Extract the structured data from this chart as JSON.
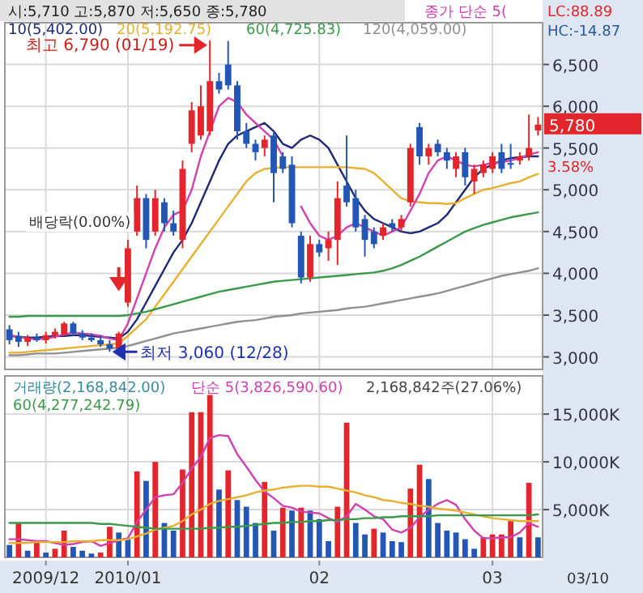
{
  "chart_data": [
    {
      "type": "candlestick",
      "title": "시:5,710 고:5,870 저:5,650 종:5,780",
      "categories": [
        null,
        null,
        null,
        null,
        "2009/12",
        null,
        null,
        null,
        null,
        null,
        null,
        null,
        null,
        "2010/01",
        null,
        null,
        null,
        null,
        null,
        null,
        null,
        null,
        null,
        null,
        null,
        null,
        null,
        null,
        null,
        null,
        null,
        null,
        null,
        null,
        "02",
        null,
        null,
        null,
        null,
        null,
        null,
        null,
        null,
        null,
        null,
        null,
        null,
        null,
        null,
        null,
        null,
        null,
        null,
        "03",
        null,
        null,
        null,
        null,
        null
      ],
      "ohlc": [
        [
          3330,
          3380,
          3150,
          3200
        ],
        [
          3250,
          3300,
          3120,
          3180
        ],
        [
          3180,
          3260,
          3130,
          3230
        ],
        [
          3230,
          3280,
          3180,
          3200
        ],
        [
          3200,
          3300,
          3160,
          3260
        ],
        [
          3260,
          3340,
          3220,
          3300
        ],
        [
          3270,
          3420,
          3250,
          3400
        ],
        [
          3400,
          3420,
          3250,
          3280
        ],
        [
          3280,
          3320,
          3200,
          3230
        ],
        [
          3230,
          3280,
          3180,
          3200
        ],
        [
          3200,
          3260,
          3120,
          3150
        ],
        [
          3150,
          3200,
          3060,
          3100
        ],
        [
          3100,
          3300,
          3080,
          3280
        ],
        [
          3650,
          4400,
          3600,
          4300
        ],
        [
          4500,
          5050,
          4450,
          4900
        ],
        [
          4900,
          4950,
          4300,
          4400
        ],
        [
          4500,
          5000,
          4450,
          4900
        ],
        [
          4850,
          4900,
          4500,
          4600
        ],
        [
          4600,
          4750,
          4450,
          4500
        ],
        [
          4400,
          5350,
          4300,
          5250
        ],
        [
          5550,
          6050,
          5450,
          5950
        ],
        [
          5650,
          6250,
          5600,
          6000
        ],
        [
          5700,
          6790,
          5650,
          6300
        ],
        [
          6300,
          6400,
          6150,
          6200
        ],
        [
          6500,
          6780,
          6200,
          6250
        ],
        [
          6250,
          6300,
          5600,
          5700
        ],
        [
          5700,
          5800,
          5500,
          5550
        ],
        [
          5550,
          5600,
          5350,
          5450
        ],
        [
          5500,
          5650,
          5400,
          5600
        ],
        [
          5650,
          5700,
          4850,
          5200
        ],
        [
          5400,
          5450,
          5200,
          5250
        ],
        [
          5300,
          5400,
          4550,
          4600
        ],
        [
          4450,
          4500,
          3880,
          3950
        ],
        [
          3950,
          4450,
          3900,
          4350
        ],
        [
          4350,
          4400,
          4200,
          4250
        ],
        [
          4300,
          4500,
          4150,
          4400
        ],
        [
          4400,
          5100,
          4100,
          4900
        ],
        [
          5050,
          5650,
          4800,
          4850
        ],
        [
          4900,
          5000,
          4500,
          4550
        ],
        [
          4650,
          4700,
          4200,
          4400
        ],
        [
          4500,
          4550,
          4300,
          4350
        ],
        [
          4450,
          4600,
          4400,
          4550
        ],
        [
          4600,
          4650,
          4500,
          4550
        ],
        [
          4550,
          4700,
          4500,
          4650
        ],
        [
          4850,
          5550,
          4800,
          5500
        ],
        [
          5750,
          5800,
          5300,
          5400
        ],
        [
          5400,
          5550,
          5300,
          5500
        ],
        [
          5550,
          5600,
          5400,
          5450
        ],
        [
          5450,
          5500,
          5250,
          5350
        ],
        [
          5250,
          5450,
          5150,
          5400
        ],
        [
          5450,
          5500,
          5050,
          5150
        ],
        [
          5100,
          5300,
          4950,
          5250
        ],
        [
          5200,
          5350,
          5150,
          5300
        ],
        [
          5250,
          5450,
          5200,
          5400
        ],
        [
          5450,
          5550,
          5200,
          5250
        ],
        [
          5320,
          5550,
          5250,
          5300
        ],
        [
          5350,
          5450,
          5300,
          5400
        ],
        [
          5400,
          5900,
          5350,
          5500
        ],
        [
          5710,
          5870,
          5650,
          5780
        ]
      ],
      "colors": [
        "#2457b5",
        "#2457b5",
        "#e3262b",
        "#2457b5",
        "#e3262b",
        "#e3262b",
        "#e3262b",
        "#2457b5",
        "#2457b5",
        "#2457b5",
        "#2457b5",
        "#2457b5",
        "#e3262b",
        "#e3262b",
        "#e3262b",
        "#2457b5",
        "#e3262b",
        "#2457b5",
        "#2457b5",
        "#e3262b",
        "#e3262b",
        "#e3262b",
        "#e3262b",
        "#2457b5",
        "#2457b5",
        "#2457b5",
        "#2457b5",
        "#2457b5",
        "#e3262b",
        "#2457b5",
        "#2457b5",
        "#2457b5",
        "#2457b5",
        "#e3262b",
        "#2457b5",
        "#e3262b",
        "#e3262b",
        "#2457b5",
        "#2457b5",
        "#2457b5",
        "#2457b5",
        "#e3262b",
        "#2457b5",
        "#e3262b",
        "#e3262b",
        "#2457b5",
        "#e3262b",
        "#2457b5",
        "#2457b5",
        "#e3262b",
        "#2457b5",
        "#e3262b",
        "#e3262b",
        "#e3262b",
        "#2457b5",
        "#2457b5",
        "#e3262b",
        "#e3262b",
        "#e3262b"
      ],
      "ylim": [
        2850,
        7000
      ],
      "yticks": [
        {
          "value": 3000,
          "label": "3,000"
        },
        {
          "value": 3500,
          "label": "3,500"
        },
        {
          "value": 4000,
          "label": "4,000"
        },
        {
          "value": 4500,
          "label": "4,500"
        },
        {
          "value": 5000,
          "label": "5,000"
        },
        {
          "value": 5500,
          "label": "5,500"
        },
        {
          "value": 6000,
          "label": "6,000"
        },
        {
          "value": 6500,
          "label": "6,500"
        }
      ],
      "grid": true,
      "tick_labels": "y",
      "legend": "top left",
      "series": [
        {
          "type": "line",
          "name": "10(5,402.00)",
          "color": "#1c2a78",
          "values": [
            3250,
            3240,
            3230,
            3230,
            3240,
            3250,
            3250,
            3260,
            3260,
            3250,
            3240,
            3230,
            3220,
            3300,
            3450,
            3650,
            3850,
            4050,
            4250,
            4400,
            4600,
            4850,
            5100,
            5350,
            5550,
            5650,
            5700,
            5750,
            5800,
            5700,
            5550,
            5500,
            5600,
            5650,
            5600,
            5500,
            5300,
            5100,
            4900,
            4750,
            4650,
            4600,
            4550,
            4500,
            4480,
            4500,
            4550,
            4600,
            4700,
            4850,
            5000,
            5150,
            5250,
            5300,
            5350,
            5380,
            5390,
            5400,
            5400
          ]
        },
        {
          "type": "line",
          "name": "20(5,192.75)",
          "color": "#e8b030",
          "values": [
            3050,
            3050,
            3060,
            3070,
            3080,
            3090,
            3100,
            3110,
            3120,
            3130,
            3140,
            3150,
            3160,
            3250,
            3350,
            3450,
            3600,
            3750,
            3900,
            4050,
            4200,
            4350,
            4500,
            4650,
            4800,
            4950,
            5100,
            5200,
            5250,
            5260,
            5270,
            5270,
            5270,
            5270,
            5270,
            5270,
            5270,
            5270,
            5260,
            5250,
            5200,
            5100,
            5000,
            4900,
            4860,
            4850,
            4840,
            4840,
            4830,
            4840,
            4900,
            4950,
            5000,
            5020,
            5050,
            5080,
            5100,
            5150,
            5190
          ]
        },
        {
          "type": "line",
          "name": "60(4,725.83)",
          "color": "#3a9a4a",
          "values": [
            3480,
            3480,
            3490,
            3490,
            3490,
            3490,
            3490,
            3490,
            3490,
            3490,
            3490,
            3490,
            3490,
            3500,
            3520,
            3540,
            3570,
            3600,
            3630,
            3660,
            3690,
            3720,
            3750,
            3780,
            3800,
            3820,
            3840,
            3860,
            3880,
            3900,
            3910,
            3920,
            3930,
            3940,
            3950,
            3960,
            3970,
            3980,
            3990,
            4000,
            4010,
            4030,
            4060,
            4100,
            4150,
            4200,
            4260,
            4320,
            4380,
            4440,
            4500,
            4540,
            4580,
            4610,
            4640,
            4670,
            4690,
            4710,
            4730
          ]
        },
        {
          "type": "line",
          "name": "120(4,059.00)",
          "color": "#909090",
          "values": [
            3020,
            3020,
            3030,
            3040,
            3040,
            3040,
            3050,
            3060,
            3070,
            3080,
            3090,
            3100,
            3110,
            3130,
            3160,
            3190,
            3220,
            3250,
            3280,
            3300,
            3320,
            3340,
            3360,
            3380,
            3400,
            3420,
            3430,
            3440,
            3460,
            3480,
            3490,
            3500,
            3520,
            3530,
            3540,
            3550,
            3560,
            3580,
            3590,
            3600,
            3620,
            3640,
            3660,
            3680,
            3700,
            3720,
            3740,
            3760,
            3790,
            3820,
            3850,
            3880,
            3910,
            3940,
            3970,
            3990,
            4010,
            4030,
            4060
          ]
        },
        {
          "type": "line",
          "name": "종가 단순 5(",
          "color": "#d040b0",
          "values": [
            3260,
            3240,
            3220,
            3210,
            3220,
            3240,
            3270,
            3290,
            3280,
            3270,
            3250,
            3220,
            3200,
            3400,
            3700,
            4000,
            4300,
            4550,
            4700,
            4750,
            5000,
            5400,
            5700,
            6000,
            6100,
            6050,
            5900,
            5800,
            5700,
            5600,
            5400,
            null,
            4800,
            4600,
            4450,
            4400,
            4450,
            4550,
            4600,
            4550,
            4500,
            4450,
            4500,
            4550,
            4750,
            4950,
            5200,
            5350,
            5400,
            5350,
            5300,
            5280,
            5300,
            5320,
            5330,
            5350,
            5380,
            5420,
            5450
          ]
        }
      ],
      "annotations": [
        "최고 6,790 (01/19)",
        "배당락(0.00%)",
        "최저 3,060 (12/28)",
        "5,780",
        "3.58%",
        "LC:88.89",
        "HC:-14.87"
      ]
    },
    {
      "type": "bar",
      "categories": [
        null,
        null,
        null,
        null,
        "2009/12",
        null,
        null,
        null,
        null,
        null,
        null,
        null,
        null,
        "2010/01",
        null,
        null,
        null,
        null,
        null,
        null,
        null,
        null,
        null,
        null,
        null,
        null,
        null,
        null,
        null,
        null,
        null,
        null,
        null,
        null,
        "02",
        null,
        null,
        null,
        null,
        null,
        null,
        null,
        null,
        null,
        null,
        null,
        null,
        null,
        null,
        null,
        null,
        null,
        null,
        "03",
        null,
        null,
        null,
        null,
        null
      ],
      "ylim": [
        0,
        19000
      ],
      "yticks": [
        {
          "value": 5000,
          "label": "5,000K"
        },
        {
          "value": 10000,
          "label": "10,000K"
        },
        {
          "value": 15000,
          "label": "15,000K"
        }
      ],
      "grid": true,
      "legend": "top left",
      "series": [
        {
          "type": "bar",
          "values": [
            1300,
            3600,
            700,
            1600,
            500,
            900,
            2800,
            1100,
            700,
            400,
            500,
            3200,
            2600,
            1900,
            9000,
            8000,
            10000,
            3600,
            2800,
            9200,
            15200,
            15200,
            17000,
            7100,
            9100,
            6000,
            5300,
            3600,
            7900,
            2800,
            5200,
            4900,
            5200,
            4900,
            4000,
            1700,
            5300,
            14100,
            3600,
            2400,
            3000,
            2600,
            1700,
            1600,
            7200,
            9700,
            8200,
            3600,
            2800,
            2600,
            1900,
            900,
            2100,
            2400,
            2400,
            3800,
            2100,
            7800,
            2100
          ],
          "colors": [
            "#2457b5",
            "#e3262b",
            "#2457b5",
            "#e3262b",
            "#2457b5",
            "#e3262b",
            "#e3262b",
            "#2457b5",
            "#2457b5",
            "#2457b5",
            "#e3262b",
            "#e3262b",
            "#2457b5",
            "#2457b5",
            "#e3262b",
            "#2457b5",
            "#e3262b",
            "#2457b5",
            "#2457b5",
            "#e3262b",
            "#e3262b",
            "#e3262b",
            "#e3262b",
            "#2457b5",
            "#e3262b",
            "#2457b5",
            "#2457b5",
            "#2457b5",
            "#e3262b",
            "#2457b5",
            "#e3262b",
            "#2457b5",
            "#e3262b",
            "#2457b5",
            "#2457b5",
            "#2457b5",
            "#e3262b",
            "#e3262b",
            "#2457b5",
            "#2457b5",
            "#e3262b",
            "#2457b5",
            "#2457b5",
            "#2457b5",
            "#e3262b",
            "#e3262b",
            "#2457b5",
            "#2457b5",
            "#2457b5",
            "#2457b5",
            "#2457b5",
            "#2457b5",
            "#e3262b",
            "#e3262b",
            "#e3262b",
            "#e3262b",
            "#2457b5",
            "#e3262b",
            "#2457b5"
          ]
        },
        {
          "type": "line",
          "name": "단순 5(3,826,590.60)",
          "color": "#d040b0",
          "values": [
            1900,
            1900,
            1800,
            1700,
            1700,
            1500,
            1300,
            1400,
            1600,
            1700,
            1200,
            1500,
            1800,
            2000,
            3700,
            5000,
            6300,
            6500,
            6600,
            7800,
            9300,
            10500,
            12500,
            12800,
            12700,
            10800,
            9500,
            8100,
            6900,
            6200,
            5400,
            5200,
            4800,
            4700,
            4600,
            4100,
            3700,
            4300,
            5600,
            5000,
            4300,
            4000,
            2900,
            2600,
            3100,
            4200,
            5000,
            5600,
            6000,
            5500,
            4000,
            2800,
            2000,
            2000,
            2100,
            2100,
            2600,
            3600,
            3200
          ]
        },
        {
          "type": "line",
          "color": "#e8b030",
          "values": [
            1500,
            1500,
            1500,
            1600,
            1600,
            1600,
            1600,
            1700,
            1700,
            1700,
            1800,
            1800,
            1800,
            1900,
            2200,
            2500,
            2900,
            3100,
            3300,
            3800,
            4500,
            5000,
            5600,
            5900,
            6100,
            6300,
            6500,
            6800,
            7000,
            7100,
            7300,
            7400,
            7500,
            7500,
            7400,
            7400,
            7200,
            7000,
            6800,
            6500,
            6300,
            6000,
            5900,
            5700,
            5600,
            5400,
            5300,
            5100,
            5000,
            4900,
            4700,
            4500,
            4300,
            4100,
            4000,
            3900,
            3800,
            3800,
            3800
          ]
        },
        {
          "type": "line",
          "name": "60(4,277,242.79)",
          "color": "#3a9a4a",
          "values": [
            3600,
            3600,
            3600,
            3600,
            3600,
            3600,
            3600,
            3600,
            3600,
            3600,
            3500,
            3500,
            3400,
            3300,
            3200,
            3100,
            3000,
            3000,
            3000,
            3000,
            3000,
            3000,
            3100,
            3100,
            3200,
            3200,
            3300,
            3400,
            3500,
            3600,
            3600,
            3700,
            3700,
            3800,
            3800,
            3900,
            3900,
            4000,
            4000,
            4100,
            4100,
            4200,
            4200,
            4300,
            4300,
            4300,
            4300,
            4400,
            4400,
            4400,
            4400,
            4400,
            4400,
            4400,
            4400,
            4400,
            4400,
            4400,
            4500
          ]
        }
      ],
      "annotations": [
        "거래량(2,168,842.00)",
        "2,168,842주(27.06%)",
        "03/10"
      ]
    }
  ]
}
